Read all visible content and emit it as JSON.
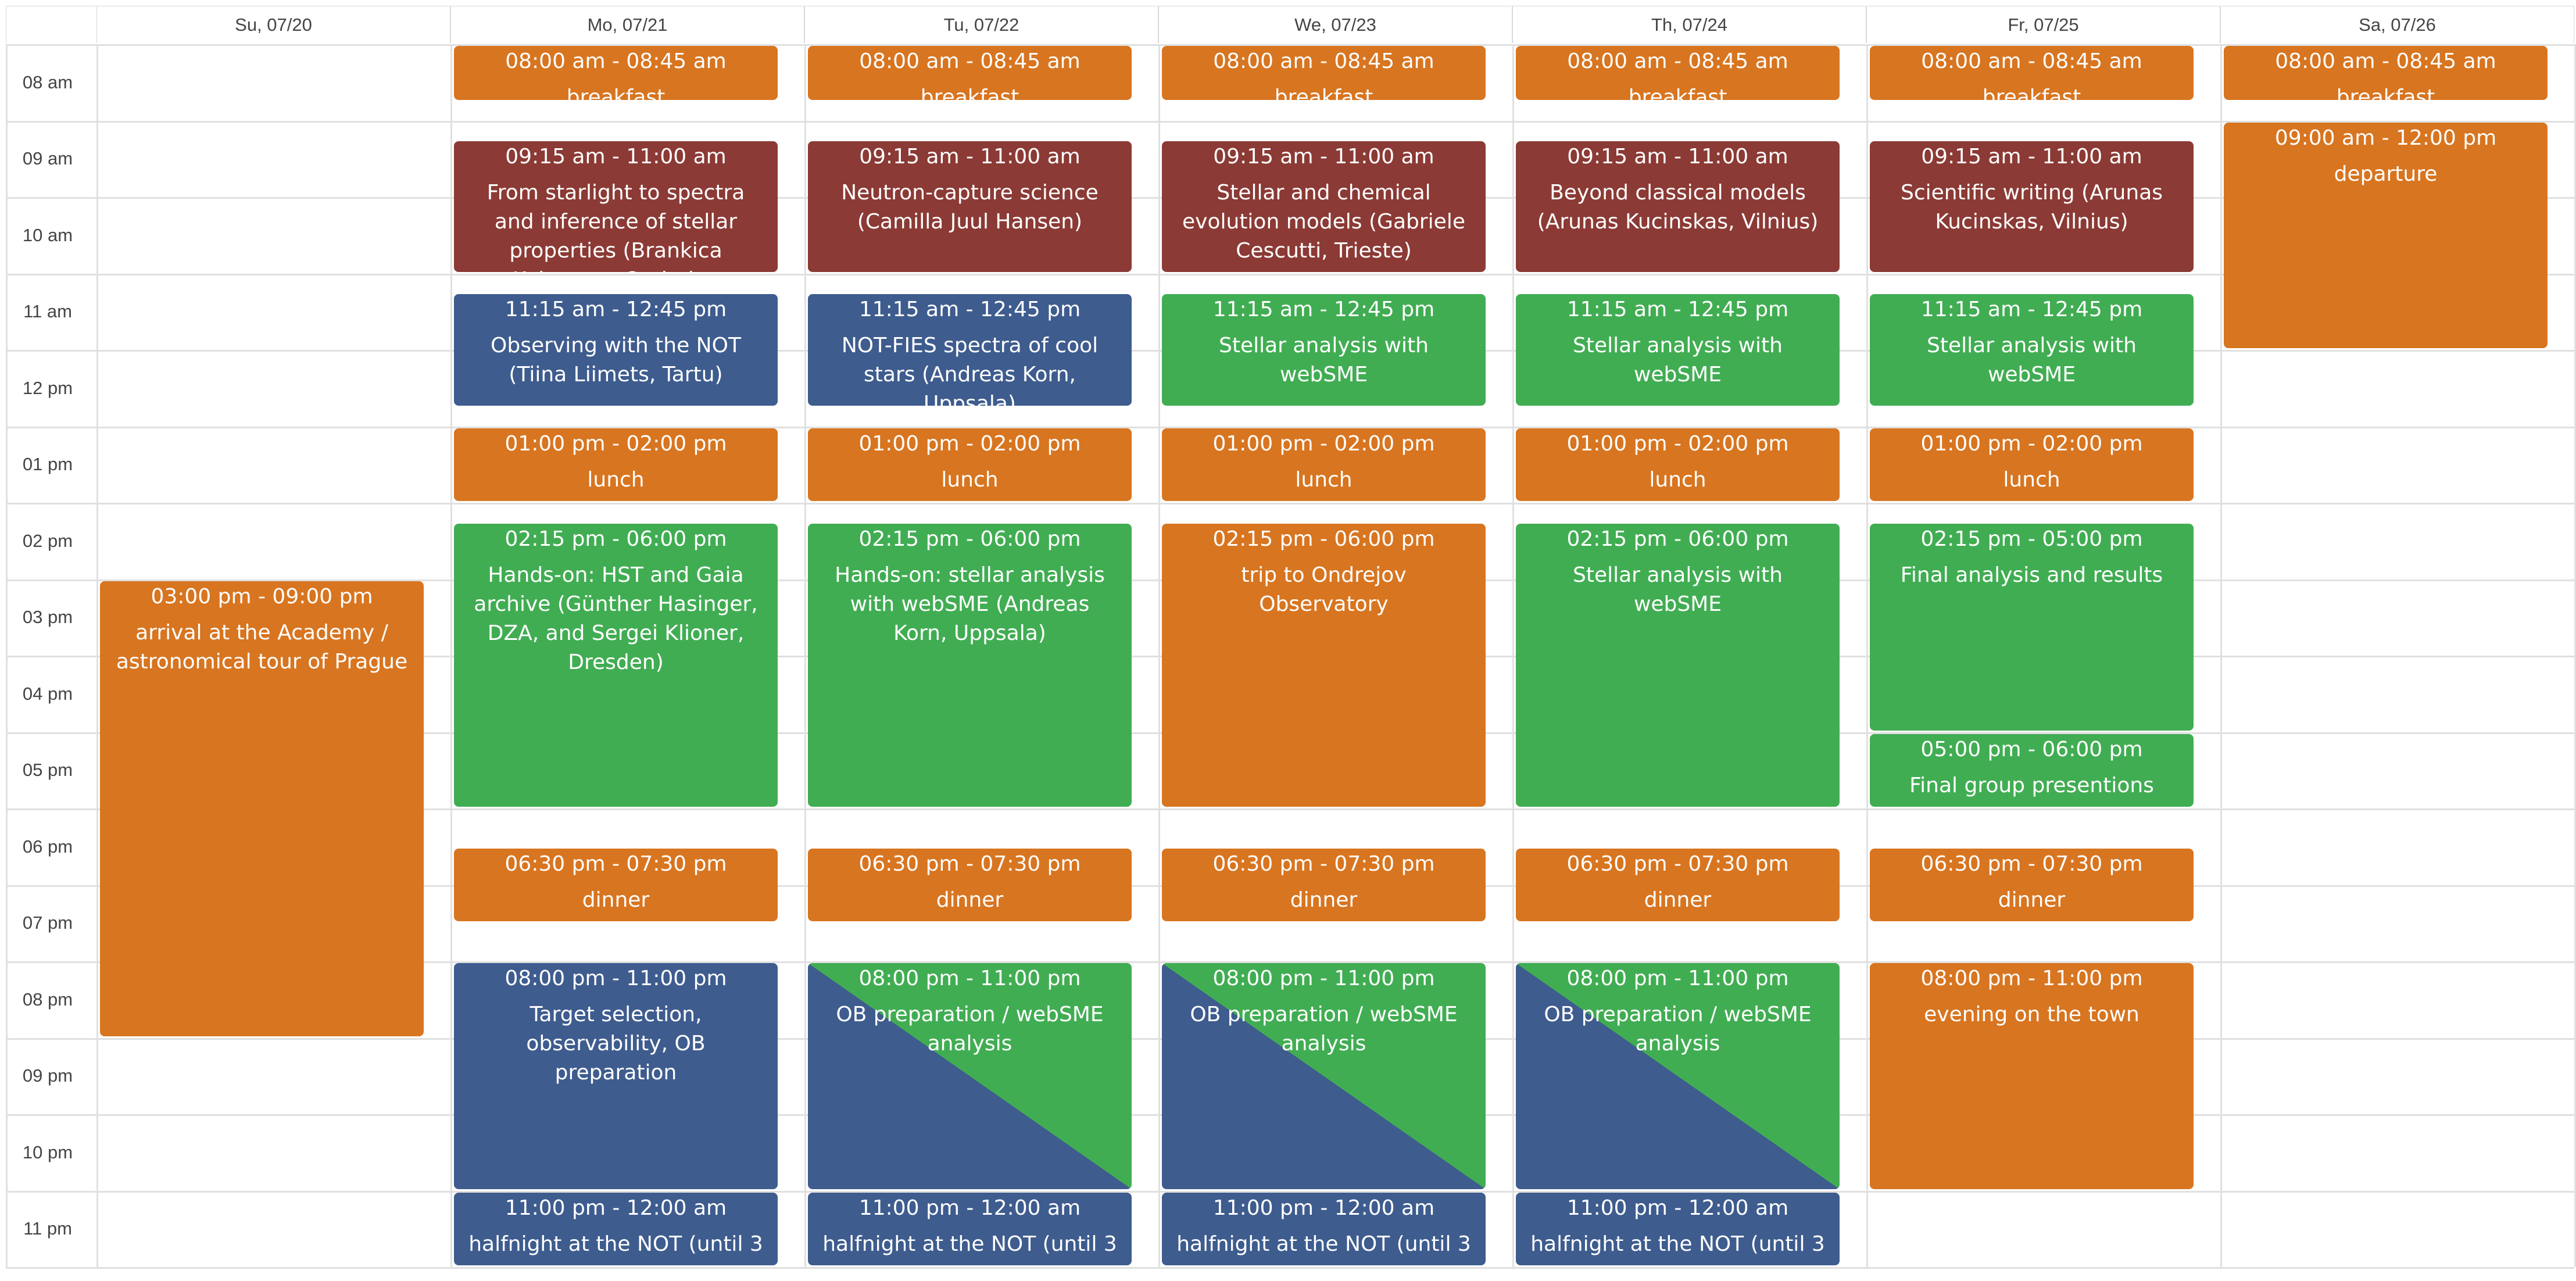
{
  "calendar": {
    "days": [
      "Su, 07/20",
      "Mo, 07/21",
      "Tu, 07/22",
      "We, 07/23",
      "Th, 07/24",
      "Fr, 07/25",
      "Sa, 07/26"
    ],
    "hours": [
      "08 am",
      "09 am",
      "10 am",
      "11 am",
      "12 pm",
      "01 pm",
      "02 pm",
      "03 pm",
      "04 pm",
      "05 pm",
      "06 pm",
      "07 pm",
      "08 pm",
      "09 pm",
      "10 pm",
      "11 pm"
    ],
    "colors": {
      "orange": "#d87520",
      "red": "#8b3a35",
      "blue": "#3e5c8e",
      "green": "#41ad53"
    },
    "events": [
      {
        "day": 0,
        "start": 15.0,
        "end": 21.0,
        "color": "orange",
        "time": "03:00 pm - 09:00 pm",
        "title": "arrival at the Academy / astronomical tour of Prague"
      },
      {
        "day": 1,
        "start": 8.0,
        "end": 8.75,
        "color": "orange",
        "time": "08:00 am - 08:45 am",
        "title": "breakfast"
      },
      {
        "day": 1,
        "start": 9.25,
        "end": 11.0,
        "color": "red",
        "time": "09:15 am - 11:00 am",
        "title": "From starlight to spectra and inference of stellar properties (Brankica Kubatova, Ondrejov"
      },
      {
        "day": 1,
        "start": 11.25,
        "end": 12.75,
        "color": "blue",
        "time": "11:15 am - 12:45 pm",
        "title": "Observing with the NOT (Tiina Liimets, Tartu)"
      },
      {
        "day": 1,
        "start": 13.0,
        "end": 14.0,
        "color": "orange",
        "time": "01:00 pm - 02:00 pm",
        "title": "lunch"
      },
      {
        "day": 1,
        "start": 14.25,
        "end": 18.0,
        "color": "green",
        "time": "02:15 pm - 06:00 pm",
        "title": "Hands-on: HST and Gaia archive (Günther Hasinger, DZA, and Sergei Klioner, Dresden)"
      },
      {
        "day": 1,
        "start": 18.5,
        "end": 19.5,
        "color": "orange",
        "time": "06:30 pm - 07:30 pm",
        "title": "dinner"
      },
      {
        "day": 1,
        "start": 20.0,
        "end": 23.0,
        "color": "blue",
        "time": "08:00 pm - 11:00 pm",
        "title": "Target selection, observability, OB preparation"
      },
      {
        "day": 1,
        "start": 23.0,
        "end": 24.0,
        "color": "blue",
        "time": "11:00 pm - 12:00 am",
        "title": "halfnight at the NOT (until 3"
      },
      {
        "day": 2,
        "start": 8.0,
        "end": 8.75,
        "color": "orange",
        "time": "08:00 am - 08:45 am",
        "title": "breakfast"
      },
      {
        "day": 2,
        "start": 9.25,
        "end": 11.0,
        "color": "red",
        "time": "09:15 am - 11:00 am",
        "title": "Neutron-capture science (Camilla Juul Hansen)"
      },
      {
        "day": 2,
        "start": 11.25,
        "end": 12.75,
        "color": "blue",
        "time": "11:15 am - 12:45 pm",
        "title": "NOT-FIES spectra of cool stars (Andreas Korn, Uppsala)"
      },
      {
        "day": 2,
        "start": 13.0,
        "end": 14.0,
        "color": "orange",
        "time": "01:00 pm - 02:00 pm",
        "title": "lunch"
      },
      {
        "day": 2,
        "start": 14.25,
        "end": 18.0,
        "color": "green",
        "time": "02:15 pm - 06:00 pm",
        "title": "Hands-on: stellar analysis with webSME (Andreas Korn, Uppsala)"
      },
      {
        "day": 2,
        "start": 18.5,
        "end": 19.5,
        "color": "orange",
        "time": "06:30 pm - 07:30 pm",
        "title": "dinner"
      },
      {
        "day": 2,
        "start": 20.0,
        "end": 23.0,
        "color": "split",
        "time": "08:00 pm - 11:00 pm",
        "title": "OB preparation / webSME analysis"
      },
      {
        "day": 2,
        "start": 23.0,
        "end": 24.0,
        "color": "blue",
        "time": "11:00 pm - 12:00 am",
        "title": "halfnight at the NOT (until 3"
      },
      {
        "day": 3,
        "start": 8.0,
        "end": 8.75,
        "color": "orange",
        "time": "08:00 am - 08:45 am",
        "title": "breakfast"
      },
      {
        "day": 3,
        "start": 9.25,
        "end": 11.0,
        "color": "red",
        "time": "09:15 am - 11:00 am",
        "title": "Stellar and chemical evolution models (Gabriele Cescutti, Trieste)"
      },
      {
        "day": 3,
        "start": 11.25,
        "end": 12.75,
        "color": "green",
        "time": "11:15 am - 12:45 pm",
        "title": "Stellar analysis with webSME"
      },
      {
        "day": 3,
        "start": 13.0,
        "end": 14.0,
        "color": "orange",
        "time": "01:00 pm - 02:00 pm",
        "title": "lunch"
      },
      {
        "day": 3,
        "start": 14.25,
        "end": 18.0,
        "color": "orange",
        "time": "02:15 pm - 06:00 pm",
        "title": "trip to Ondrejov Observatory"
      },
      {
        "day": 3,
        "start": 18.5,
        "end": 19.5,
        "color": "orange",
        "time": "06:30 pm - 07:30 pm",
        "title": "dinner"
      },
      {
        "day": 3,
        "start": 20.0,
        "end": 23.0,
        "color": "split",
        "time": "08:00 pm - 11:00 pm",
        "title": "OB preparation / webSME analysis"
      },
      {
        "day": 3,
        "start": 23.0,
        "end": 24.0,
        "color": "blue",
        "time": "11:00 pm - 12:00 am",
        "title": "halfnight at the NOT (until 3"
      },
      {
        "day": 4,
        "start": 8.0,
        "end": 8.75,
        "color": "orange",
        "time": "08:00 am - 08:45 am",
        "title": "breakfast"
      },
      {
        "day": 4,
        "start": 9.25,
        "end": 11.0,
        "color": "red",
        "time": "09:15 am - 11:00 am",
        "title": "Beyond classical models (Arunas Kucinskas, Vilnius)"
      },
      {
        "day": 4,
        "start": 11.25,
        "end": 12.75,
        "color": "green",
        "time": "11:15 am - 12:45 pm",
        "title": "Stellar analysis with webSME"
      },
      {
        "day": 4,
        "start": 13.0,
        "end": 14.0,
        "color": "orange",
        "time": "01:00 pm - 02:00 pm",
        "title": "lunch"
      },
      {
        "day": 4,
        "start": 14.25,
        "end": 18.0,
        "color": "green",
        "time": "02:15 pm - 06:00 pm",
        "title": "Stellar analysis with webSME"
      },
      {
        "day": 4,
        "start": 18.5,
        "end": 19.5,
        "color": "orange",
        "time": "06:30 pm - 07:30 pm",
        "title": "dinner"
      },
      {
        "day": 4,
        "start": 20.0,
        "end": 23.0,
        "color": "split",
        "time": "08:00 pm - 11:00 pm",
        "title": "OB preparation / webSME analysis"
      },
      {
        "day": 4,
        "start": 23.0,
        "end": 24.0,
        "color": "blue",
        "time": "11:00 pm - 12:00 am",
        "title": "halfnight at the NOT (until 3"
      },
      {
        "day": 5,
        "start": 8.0,
        "end": 8.75,
        "color": "orange",
        "time": "08:00 am - 08:45 am",
        "title": "breakfast"
      },
      {
        "day": 5,
        "start": 9.25,
        "end": 11.0,
        "color": "red",
        "time": "09:15 am - 11:00 am",
        "title": "Scientific writing (Arunas Kucinskas, Vilnius)"
      },
      {
        "day": 5,
        "start": 11.25,
        "end": 12.75,
        "color": "green",
        "time": "11:15 am - 12:45 pm",
        "title": "Stellar analysis with webSME"
      },
      {
        "day": 5,
        "start": 13.0,
        "end": 14.0,
        "color": "orange",
        "time": "01:00 pm - 02:00 pm",
        "title": "lunch"
      },
      {
        "day": 5,
        "start": 14.25,
        "end": 17.0,
        "color": "green",
        "time": "02:15 pm - 05:00 pm",
        "title": "Final analysis and results"
      },
      {
        "day": 5,
        "start": 17.0,
        "end": 18.0,
        "color": "green",
        "time": "05:00 pm - 06:00 pm",
        "title": "Final group presentions"
      },
      {
        "day": 5,
        "start": 18.5,
        "end": 19.5,
        "color": "orange",
        "time": "06:30 pm - 07:30 pm",
        "title": "dinner"
      },
      {
        "day": 5,
        "start": 20.0,
        "end": 23.0,
        "color": "orange",
        "time": "08:00 pm - 11:00 pm",
        "title": "evening on the town"
      },
      {
        "day": 6,
        "start": 8.0,
        "end": 8.75,
        "color": "orange",
        "time": "08:00 am - 08:45 am",
        "title": "breakfast"
      },
      {
        "day": 6,
        "start": 9.0,
        "end": 12.0,
        "color": "orange",
        "time": "09:00 am - 12:00 pm",
        "title": "departure"
      }
    ]
  }
}
